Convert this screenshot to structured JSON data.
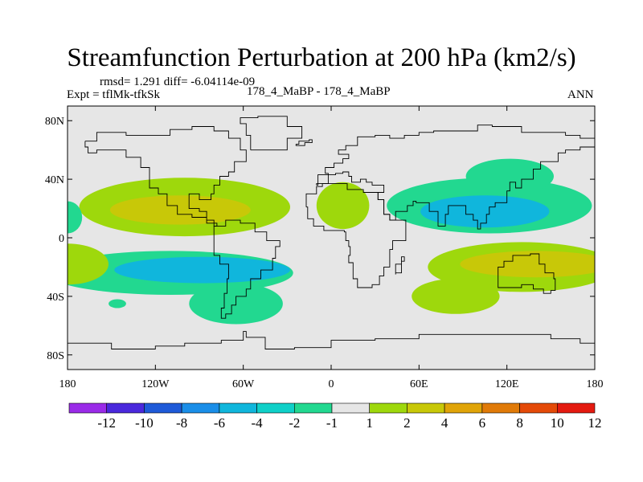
{
  "chart_data": {
    "type": "contour_map",
    "title": "Streamfunction Perturbation at 200 hPa (km2/s)",
    "stats": "rmsd= 1.291 diff= -6.04114e-09",
    "experiment": "Expt = tflMk-tfkSk",
    "case": "178_4_MaBP - 178_4_MaBP",
    "season": "ANN",
    "x_ticks": [
      "180",
      "120W",
      "60W",
      "0",
      "60E",
      "120E",
      "180"
    ],
    "x_tick_values": [
      -180,
      -120,
      -60,
      0,
      60,
      120,
      180
    ],
    "y_ticks": [
      "80N",
      "40N",
      "0",
      "40S",
      "80S"
    ],
    "y_tick_values": [
      80,
      40,
      0,
      -40,
      -80
    ],
    "xlim": [
      -180,
      180
    ],
    "ylim": [
      -90,
      90
    ],
    "contour_levels": [
      "-12",
      "-10",
      "-8",
      "-6",
      "-4",
      "-2",
      "-1",
      "1",
      "2",
      "4",
      "6",
      "8",
      "10",
      "12"
    ],
    "colorbar_colors": [
      "#9a2be8",
      "#4a28dc",
      "#1e5ad8",
      "#1a8ee8",
      "#10b6dc",
      "#0fd0c8",
      "#22d890",
      "#e6e6e6",
      "#9ed80c",
      "#c8c808",
      "#e0a408",
      "#e07a08",
      "#e44a08",
      "#e41a10"
    ],
    "background_color": "#e6e6e6",
    "regions": [
      {
        "name": "nh-pacific-positive-outer",
        "color": "#9ed80c",
        "center": [
          -100,
          21
        ],
        "radii": [
          72,
          20
        ]
      },
      {
        "name": "nh-pacific-positive-inner",
        "color": "#c8c808",
        "center": [
          -103,
          19
        ],
        "radii": [
          48,
          10
        ]
      },
      {
        "name": "nh-atlantic-positive",
        "color": "#9ed80c",
        "center": [
          8,
          22
        ],
        "radii": [
          18,
          16
        ]
      },
      {
        "name": "nh-west-edge-negative",
        "color": "#22d890",
        "center": [
          -180,
          14
        ],
        "radii": [
          10,
          11
        ]
      },
      {
        "name": "sh-pacific-negative-outer",
        "color": "#22d890",
        "center": [
          -110,
          -24
        ],
        "radii": [
          84,
          15
        ]
      },
      {
        "name": "sh-pacific-negative-tail",
        "color": "#22d890",
        "center": [
          -65,
          -45
        ],
        "radii": [
          32,
          14
        ]
      },
      {
        "name": "sh-pacific-negative-inner",
        "color": "#10b6dc",
        "center": [
          -88,
          -22
        ],
        "radii": [
          60,
          9
        ]
      },
      {
        "name": "sh-small-negative-blob",
        "color": "#22d890",
        "center": [
          -146,
          -45
        ],
        "radii": [
          6,
          3
        ]
      },
      {
        "name": "sh-west-edge-positive",
        "color": "#9ed80c",
        "center": [
          -180,
          -18
        ],
        "radii": [
          28,
          14
        ]
      },
      {
        "name": "nh-asia-negative-outer",
        "color": "#22d890",
        "center": [
          108,
          22
        ],
        "radii": [
          70,
          19
        ]
      },
      {
        "name": "nh-asia-negative-northlobe",
        "color": "#22d890",
        "center": [
          122,
          42
        ],
        "radii": [
          30,
          12
        ]
      },
      {
        "name": "nh-asia-negative-inner",
        "color": "#10b6dc",
        "center": [
          105,
          18
        ],
        "radii": [
          44,
          11
        ]
      },
      {
        "name": "sh-indian-positive-outer",
        "color": "#9ed80c",
        "center": [
          130,
          -20
        ],
        "radii": [
          64,
          17
        ]
      },
      {
        "name": "sh-indian-positive-tail",
        "color": "#9ed80c",
        "center": [
          85,
          -40
        ],
        "radii": [
          30,
          12
        ]
      },
      {
        "name": "sh-indian-positive-inner",
        "color": "#c8c808",
        "center": [
          140,
          -18
        ],
        "radii": [
          52,
          9
        ]
      }
    ]
  }
}
